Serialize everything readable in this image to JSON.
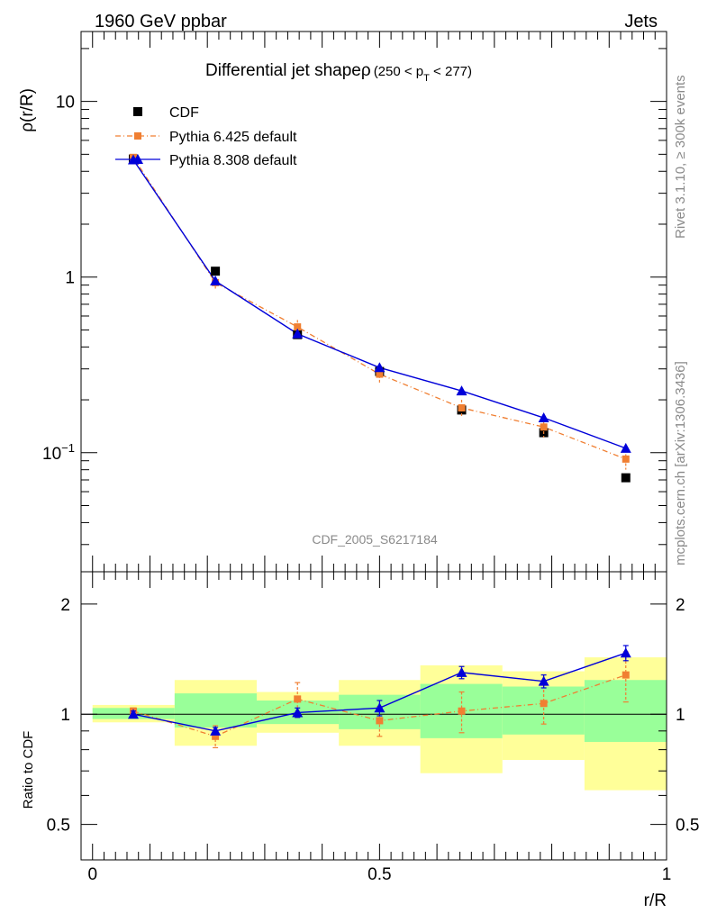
{
  "header": {
    "energy_label": "1960 GeV ppbar",
    "category_label": "Jets"
  },
  "side_labels": {
    "rivet": "Rivet 3.1.10, ≥ 300k events",
    "mcplots": "mcplots.cern.ch [arXiv:1306.3436]"
  },
  "watermark": "CDF_2005_S6217184",
  "chart_data": [
    {
      "type": "line",
      "panel": "main",
      "title": "Differential jet shapeρ",
      "title_range_prefix": "(250 < p",
      "title_range_sub": "T",
      "title_range_suffix": " < 277)",
      "ylabel": "ρ(r/R)",
      "yscale": "log",
      "ylim": [
        0.021,
        25
      ],
      "xlim": [
        -0.02,
        1.0
      ],
      "ytick_labels": [
        {
          "value": 10,
          "label": "10"
        },
        {
          "value": 1,
          "label": "1"
        },
        {
          "value": 0.1,
          "label_base": "10",
          "label_exp": "−1"
        }
      ],
      "x": [
        0.071,
        0.214,
        0.357,
        0.5,
        0.643,
        0.786,
        0.929
      ],
      "bands": [
        [
          0.0,
          0.143
        ],
        [
          0.143,
          0.286
        ],
        [
          0.286,
          0.429
        ],
        [
          0.429,
          0.571
        ],
        [
          0.571,
          0.714
        ],
        [
          0.714,
          0.857
        ],
        [
          0.857,
          1.0
        ]
      ],
      "series": [
        {
          "name": "CDF",
          "color": "#000000",
          "marker": "square",
          "values": [
            4.7,
            1.08,
            0.47,
            0.29,
            0.175,
            0.13,
            0.072
          ]
        },
        {
          "name": "Pythia 6.425 default",
          "color": "#f07f32",
          "marker": "square-small",
          "dash": "dashdot",
          "values": [
            4.8,
            0.93,
            0.52,
            0.28,
            0.18,
            0.14,
            0.092
          ],
          "err": [
            0.15,
            0.07,
            0.05,
            0.03,
            0.02,
            0.018,
            0.012
          ]
        },
        {
          "name": "Pythia 8.308 default",
          "color": "#0000d9",
          "marker": "triangle",
          "values": [
            4.65,
            0.95,
            0.475,
            0.305,
            0.225,
            0.158,
            0.106
          ],
          "err": [
            0.05,
            0.02,
            0.01,
            0.008,
            0.006,
            0.005,
            0.004
          ]
        }
      ]
    },
    {
      "type": "line",
      "panel": "ratio",
      "ylabel": "Ratio to CDF",
      "xlabel": "r/R",
      "yscale": "log",
      "ylim": [
        0.4,
        2.45
      ],
      "xlim": [
        -0.02,
        1.0
      ],
      "ytick_labels": [
        {
          "value": 2,
          "label": "2"
        },
        {
          "value": 1,
          "label": "1"
        },
        {
          "value": 0.5,
          "label": "0.5"
        }
      ],
      "xtick_labels": [
        {
          "value": 0,
          "label": "0"
        },
        {
          "value": 0.5,
          "label": "0.5"
        },
        {
          "value": 1,
          "label": "1"
        }
      ],
      "x": [
        0.071,
        0.214,
        0.357,
        0.5,
        0.643,
        0.786,
        0.929
      ],
      "band_yellow": [
        [
          0.95,
          1.06
        ],
        [
          0.82,
          1.24
        ],
        [
          0.89,
          1.15
        ],
        [
          0.82,
          1.24
        ],
        [
          0.69,
          1.36
        ],
        [
          0.75,
          1.31
        ],
        [
          0.62,
          1.43
        ]
      ],
      "band_green": [
        [
          0.97,
          1.04
        ],
        [
          0.92,
          1.14
        ],
        [
          0.94,
          1.09
        ],
        [
          0.91,
          1.13
        ],
        [
          0.86,
          1.21
        ],
        [
          0.88,
          1.19
        ],
        [
          0.84,
          1.24
        ]
      ],
      "series": [
        {
          "name": "Pythia 6.425 default",
          "color": "#f07f32",
          "values": [
            1.02,
            0.87,
            1.1,
            0.96,
            1.02,
            1.07,
            1.28
          ],
          "err": [
            0.02,
            0.06,
            0.12,
            0.09,
            0.13,
            0.13,
            0.2
          ]
        },
        {
          "name": "Pythia 8.308 default",
          "color": "#0000d9",
          "values": [
            1.0,
            0.9,
            1.01,
            1.04,
            1.3,
            1.23,
            1.47
          ],
          "err": [
            0.02,
            0.02,
            0.03,
            0.05,
            0.05,
            0.05,
            0.07
          ]
        }
      ]
    }
  ]
}
